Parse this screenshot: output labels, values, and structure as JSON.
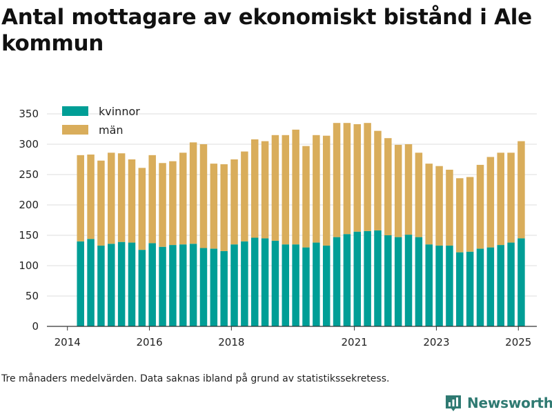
{
  "chart_data": {
    "type": "bar",
    "stacked": true,
    "title": "Antal mottagare av ekonomiskt bistånd i Ale kommun",
    "xlabel": "",
    "ylabel": "",
    "ylim": [
      0,
      350
    ],
    "yticks": [
      0,
      50,
      100,
      150,
      200,
      250,
      300,
      350
    ],
    "xlim": [
      2013.5,
      2025.45
    ],
    "xticks": [
      2014,
      2016,
      2018,
      2021,
      2023,
      2025
    ],
    "grid": "horizontal",
    "legend_position": "top-left",
    "x": [
      2014.32,
      2014.57,
      2014.82,
      2015.07,
      2015.32,
      2015.57,
      2015.82,
      2016.07,
      2016.32,
      2016.57,
      2016.82,
      2017.07,
      2017.32,
      2017.57,
      2017.82,
      2018.07,
      2018.32,
      2018.57,
      2018.82,
      2019.07,
      2019.32,
      2019.57,
      2019.82,
      2020.07,
      2020.32,
      2020.57,
      2020.82,
      2021.07,
      2021.32,
      2021.57,
      2021.82,
      2022.07,
      2022.32,
      2022.57,
      2022.82,
      2023.07,
      2023.32,
      2023.57,
      2023.82,
      2024.07,
      2024.32,
      2024.57,
      2024.82,
      2025.07
    ],
    "series": [
      {
        "name": "kvinnor",
        "color": "#009e96",
        "values": [
          140,
          144,
          133,
          136,
          139,
          138,
          126,
          137,
          131,
          134,
          135,
          136,
          129,
          128,
          124,
          135,
          140,
          146,
          145,
          141,
          135,
          135,
          130,
          138,
          133,
          147,
          152,
          156,
          157,
          158,
          150,
          147,
          151,
          147,
          135,
          133,
          133,
          122,
          123,
          128,
          130,
          134,
          138,
          145
        ]
      },
      {
        "name": "män",
        "color": "#d9ad5b",
        "values": [
          142,
          139,
          140,
          150,
          146,
          137,
          135,
          145,
          138,
          138,
          151,
          167,
          171,
          140,
          143,
          140,
          148,
          162,
          160,
          174,
          180,
          189,
          167,
          177,
          181,
          188,
          183,
          177,
          178,
          164,
          160,
          152,
          149,
          139,
          133,
          131,
          125,
          122,
          123,
          138,
          149,
          152,
          148,
          160
        ]
      }
    ],
    "footnote": "Tre månaders medelvärden. Data saknas ibland på grund av statistikssekretess."
  },
  "brand": {
    "name": "Newsworthy"
  },
  "colors": {
    "axis": "#333333",
    "grid": "#dddddd",
    "brand": "#2f7a72"
  }
}
